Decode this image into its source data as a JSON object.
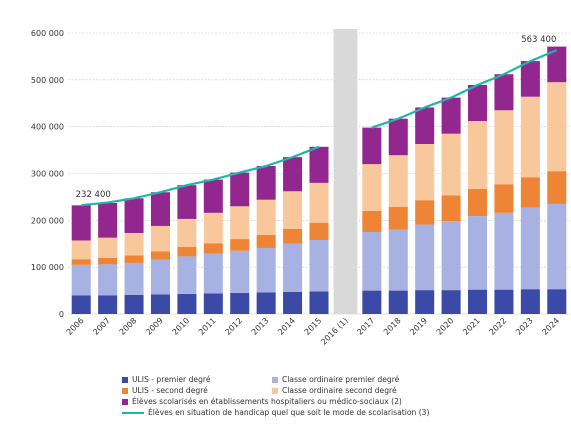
{
  "chart_data": {
    "type": "bar",
    "stacked": true,
    "categories": [
      "2006",
      "2007",
      "2008",
      "2009",
      "2010",
      "2011",
      "2012",
      "2013",
      "2014",
      "2015",
      "2016 (1)",
      "2017",
      "2018",
      "2019",
      "2020",
      "2021",
      "2022",
      "2023",
      "2024"
    ],
    "ylim": [
      0,
      600000
    ],
    "yticks": [
      0,
      100000,
      200000,
      300000,
      400000,
      500000,
      600000
    ],
    "ytick_labels": [
      "0",
      "100 000",
      "200 000",
      "300 000",
      "400 000",
      "500 000",
      "600 000"
    ],
    "grid": true,
    "gap_category": "2016 (1)",
    "series": [
      {
        "name": "ULIS - premier degré",
        "color": "#3b4aa6",
        "values": [
          40000,
          40000,
          41000,
          42000,
          43000,
          44000,
          45000,
          46000,
          47000,
          48000,
          null,
          50000,
          50000,
          51000,
          51000,
          52000,
          52000,
          53000,
          53000
        ]
      },
      {
        "name": "Classe ordinaire premier degré",
        "color": "#a8b2e2",
        "values": [
          65000,
          66000,
          68000,
          74000,
          80000,
          85000,
          90000,
          95000,
          103000,
          110000,
          null,
          125000,
          130000,
          140000,
          147000,
          157000,
          164000,
          174000,
          182000
        ]
      },
      {
        "name": "ULIS - second degré",
        "color": "#ee8436",
        "values": [
          12000,
          14000,
          16000,
          18000,
          20000,
          22000,
          25000,
          28000,
          32000,
          37000,
          null,
          45000,
          49000,
          52000,
          55000,
          58000,
          61000,
          65000,
          70000
        ]
      },
      {
        "name": "Classe ordinaire second degré",
        "color": "#f8c79c",
        "values": [
          40000,
          43000,
          48000,
          54000,
          60000,
          65000,
          70000,
          75000,
          80000,
          85000,
          null,
          100000,
          110000,
          120000,
          132000,
          145000,
          158000,
          172000,
          190000
        ]
      },
      {
        "name": "Élèves scolarisés en établissements hospitaliers ou médico-sociaux (2)",
        "color": "#92278f",
        "values": [
          75000,
          74000,
          74000,
          72000,
          72000,
          71000,
          72000,
          72000,
          73000,
          77000,
          null,
          78000,
          78000,
          78000,
          77000,
          77000,
          77000,
          76000,
          76000
        ]
      }
    ],
    "line": {
      "name": "Élèves en situation de handicap quel que soit le mode de scolarisation (3)",
      "color": "#1fb6a6",
      "values": [
        232400,
        238000,
        247000,
        260000,
        275000,
        287000,
        302000,
        316000,
        335000,
        357000,
        null,
        398000,
        417000,
        441000,
        462000,
        489000,
        512000,
        540000,
        563400
      ]
    },
    "annotations": [
      {
        "category": "2006",
        "text": "232 400"
      },
      {
        "category": "2024",
        "text": "563 400"
      }
    ],
    "legend_position": "bottom"
  }
}
